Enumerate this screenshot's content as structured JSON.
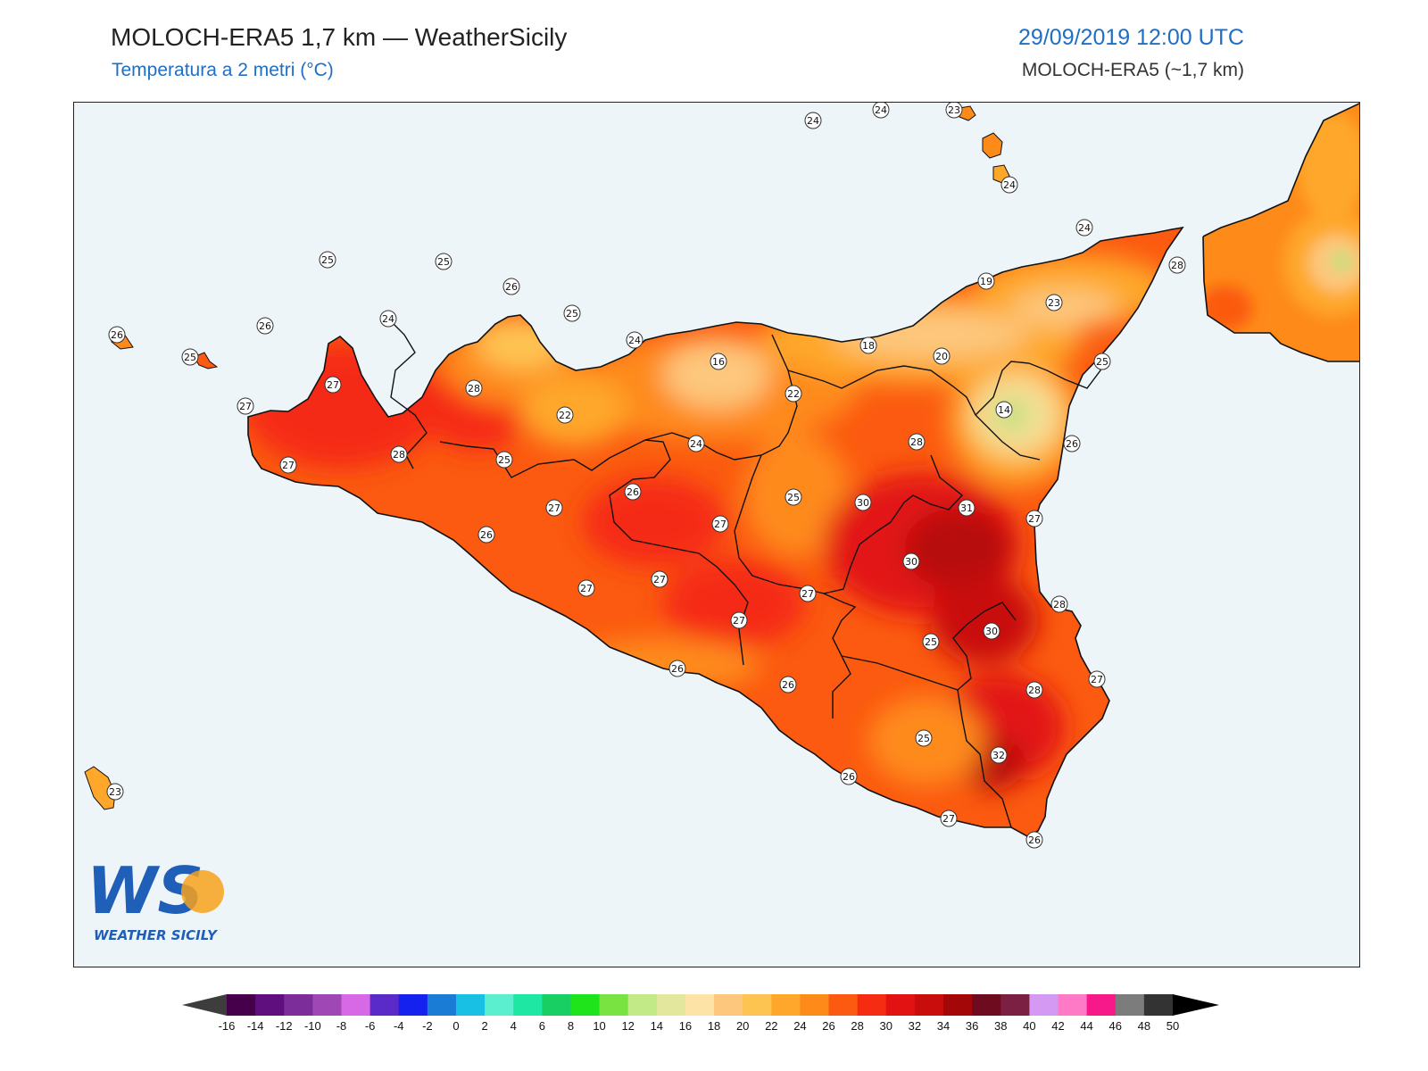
{
  "header": {
    "title_left": "MOLOCH-ERA5 1,7 km — WeatherSicily",
    "subtitle_left": "Temperatura a 2 metri (°C)",
    "title_right": "29/09/2019 12:00 UTC",
    "subtitle_right": "MOLOCH-ERA5 (~1,7 km)"
  },
  "logo": {
    "mark": "WS",
    "text": "WEATHER SICILY"
  },
  "colors": {
    "sea": "#eef5f9",
    "accent_blue": "#1f6fc5",
    "temp_14": "#c3e07e",
    "temp_16": "#f8df98",
    "temp_18": "#fcc46b",
    "temp_22": "#fea72a",
    "temp_24": "#fe8a1a",
    "temp_26": "#fb5a10",
    "temp_28": "#f52c12",
    "temp_30": "#dd1616",
    "temp_32": "#b70c0c",
    "temp_34": "#920808"
  },
  "stations": [
    {
      "v": "24"
    },
    {
      "v": "24"
    },
    {
      "v": "23"
    },
    {
      "v": "24"
    },
    {
      "v": "24"
    },
    {
      "v": "28"
    },
    {
      "v": "25"
    },
    {
      "v": "25"
    },
    {
      "v": "26"
    },
    {
      "v": "24"
    },
    {
      "v": "26"
    },
    {
      "v": "26"
    },
    {
      "v": "25"
    },
    {
      "v": "25"
    },
    {
      "v": "24"
    },
    {
      "v": "19"
    },
    {
      "v": "23"
    },
    {
      "v": "18"
    },
    {
      "v": "20"
    },
    {
      "v": "16"
    },
    {
      "v": "25"
    },
    {
      "v": "27"
    },
    {
      "v": "28"
    },
    {
      "v": "27"
    },
    {
      "v": "22"
    },
    {
      "v": "22"
    },
    {
      "v": "14"
    },
    {
      "v": "26"
    },
    {
      "v": "24"
    },
    {
      "v": "28"
    },
    {
      "v": "25"
    },
    {
      "v": "28"
    },
    {
      "v": "27"
    },
    {
      "v": "26"
    },
    {
      "v": "25"
    },
    {
      "v": "30"
    },
    {
      "v": "31"
    },
    {
      "v": "27"
    },
    {
      "v": "27"
    },
    {
      "v": "26"
    },
    {
      "v": "27"
    },
    {
      "v": "30"
    },
    {
      "v": "27"
    },
    {
      "v": "27"
    },
    {
      "v": "28"
    },
    {
      "v": "27"
    },
    {
      "v": "27"
    },
    {
      "v": "25"
    },
    {
      "v": "30"
    },
    {
      "v": "26"
    },
    {
      "v": "26"
    },
    {
      "v": "27"
    },
    {
      "v": "28"
    },
    {
      "v": "25"
    },
    {
      "v": "32"
    },
    {
      "v": "26"
    },
    {
      "v": "27"
    },
    {
      "v": "26"
    },
    {
      "v": "23"
    }
  ],
  "colorbar": {
    "colors": [
      "#3d3d3d",
      "#46004b",
      "#600f7e",
      "#7c2d99",
      "#9e47b5",
      "#d768e6",
      "#5b2bc9",
      "#1522ef",
      "#1a7cd5",
      "#18c1e3",
      "#5cefcf",
      "#1ee6a3",
      "#18cf63",
      "#1fe41b",
      "#79e441",
      "#c2ea86",
      "#e3e79e",
      "#fde3a6",
      "#fdc77d",
      "#fdc452",
      "#fea72a",
      "#fe8a1a",
      "#fb5a10",
      "#f52c12",
      "#e21212",
      "#c90d0d",
      "#a30707",
      "#6e0b1f",
      "#7c2043",
      "#d49af3",
      "#fe7ac7",
      "#f7188a",
      "#7c7c7c",
      "#333333",
      "#000000"
    ],
    "ticks": [
      "-16",
      "-14",
      "-12",
      "-10",
      "-8",
      "-6",
      "-4",
      "-2",
      "0",
      "2",
      "4",
      "6",
      "8",
      "10",
      "12",
      "14",
      "16",
      "18",
      "20",
      "22",
      "24",
      "26",
      "28",
      "30",
      "32",
      "34",
      "36",
      "38",
      "40",
      "42",
      "44",
      "46",
      "48",
      "50"
    ]
  }
}
